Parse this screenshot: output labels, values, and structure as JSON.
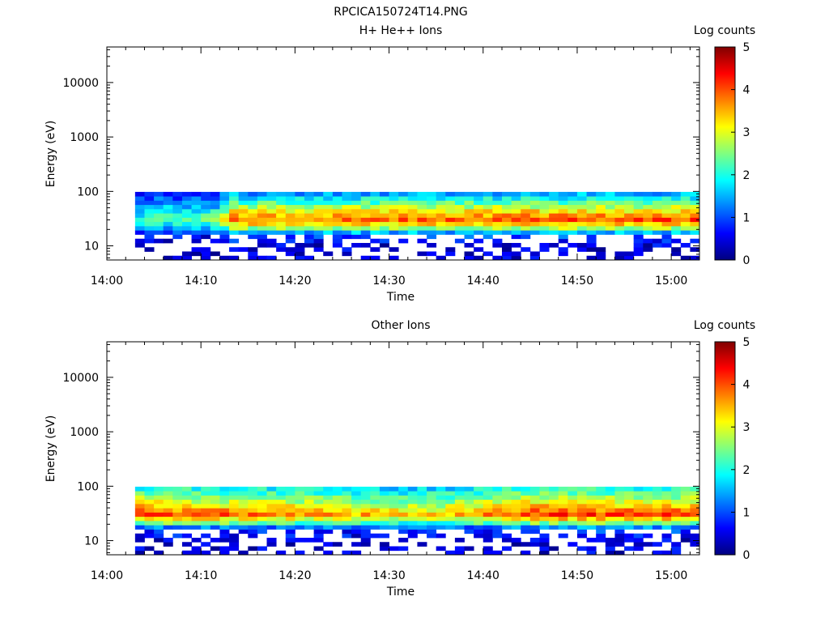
{
  "title": "RPCICA150724T14.PNG",
  "chart_data": [
    {
      "type": "heatmap",
      "title": "H+ He++ Ions",
      "xlabel": "Time",
      "ylabel": "Energy (eV)",
      "x_ticks": [
        "14:00",
        "14:10",
        "14:20",
        "14:30",
        "14:40",
        "14:50",
        "15:00"
      ],
      "y_ticks": [
        "10",
        "100",
        "1000",
        "10000"
      ],
      "y_scale": "log",
      "xlim": [
        "14:00",
        "15:03"
      ],
      "ylim": [
        5.5,
        45000
      ],
      "data_time_range": [
        "14:03",
        "15:03"
      ],
      "data_energy_range": [
        5.5,
        98
      ],
      "colorbar": {
        "label": "Log counts",
        "ticks": [
          "0",
          "1",
          "2",
          "3",
          "4",
          "5"
        ],
        "range": [
          0,
          5
        ],
        "colormap": "jet"
      },
      "energy_profile_log_counts": [
        {
          "energy_eV": 90,
          "log_counts": 1.4
        },
        {
          "energy_eV": 60,
          "log_counts": 2.3
        },
        {
          "energy_eV": 40,
          "log_counts": 3.3
        },
        {
          "energy_eV": 30,
          "log_counts": 3.8
        },
        {
          "energy_eV": 22,
          "log_counts": 2.8
        },
        {
          "energy_eV": 17,
          "log_counts": 1.2
        },
        {
          "energy_eV": 10,
          "log_counts": 0.4
        }
      ],
      "time_intensity_factor": [
        {
          "time": "14:03",
          "factor": 0.55
        },
        {
          "time": "14:12",
          "factor": 0.62
        },
        {
          "time": "14:13",
          "factor": 1.0
        },
        {
          "time": "14:45",
          "factor": 1.05
        },
        {
          "time": "15:03",
          "factor": 1.05
        }
      ]
    },
    {
      "type": "heatmap",
      "title": "Other Ions",
      "xlabel": "Time",
      "ylabel": "Energy (eV)",
      "x_ticks": [
        "14:00",
        "14:10",
        "14:20",
        "14:30",
        "14:40",
        "14:50",
        "15:00"
      ],
      "y_ticks": [
        "10",
        "100",
        "1000",
        "10000"
      ],
      "y_scale": "log",
      "xlim": [
        "14:00",
        "15:03"
      ],
      "ylim": [
        5.5,
        45000
      ],
      "data_time_range": [
        "14:03",
        "15:03"
      ],
      "data_energy_range": [
        5.5,
        98
      ],
      "colorbar": {
        "label": "Log counts",
        "ticks": [
          "0",
          "1",
          "2",
          "3",
          "4",
          "5"
        ],
        "range": [
          0,
          5
        ],
        "colormap": "jet"
      },
      "energy_profile_log_counts": [
        {
          "energy_eV": 90,
          "log_counts": 2.0
        },
        {
          "energy_eV": 60,
          "log_counts": 2.6
        },
        {
          "energy_eV": 40,
          "log_counts": 3.4
        },
        {
          "energy_eV": 30,
          "log_counts": 3.9
        },
        {
          "energy_eV": 22,
          "log_counts": 2.6
        },
        {
          "energy_eV": 17,
          "log_counts": 1.0
        },
        {
          "energy_eV": 10,
          "log_counts": 0.4
        }
      ],
      "time_intensity_factor": [
        {
          "time": "14:03",
          "factor": 1.05
        },
        {
          "time": "14:12",
          "factor": 1.0
        },
        {
          "time": "14:35",
          "factor": 0.85
        },
        {
          "time": "14:45",
          "factor": 1.05
        },
        {
          "time": "15:03",
          "factor": 1.05
        }
      ]
    }
  ]
}
